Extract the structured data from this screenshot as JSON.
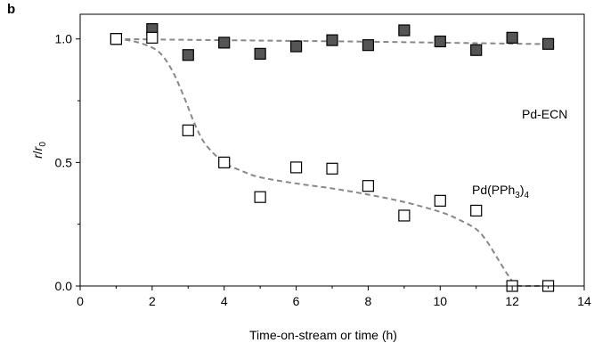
{
  "panel_label": "b",
  "chart_data": {
    "type": "scatter",
    "title": "",
    "xlabel": "Time-on-stream or time (h)",
    "ylabel_main": "r",
    "ylabel_sep": "/",
    "ylabel_sub_main": "r",
    "ylabel_subscript": "0",
    "xlim": [
      0,
      14
    ],
    "ylim": [
      0,
      1.1
    ],
    "xticks": [
      0,
      2,
      4,
      6,
      8,
      10,
      12,
      14
    ],
    "yticks": [
      0.0,
      0.5,
      1.0
    ],
    "ytick_labels": [
      "0.0",
      "0.5",
      "1.0"
    ],
    "grid": false,
    "series": [
      {
        "name": "Pd-ECN",
        "marker": "filled-square",
        "color": "#555555",
        "x": [
          1,
          2,
          3,
          4,
          5,
          6,
          7,
          8,
          9,
          10,
          11,
          12,
          13
        ],
        "y": [
          1.0,
          1.04,
          0.935,
          0.985,
          0.94,
          0.97,
          0.995,
          0.975,
          1.035,
          0.99,
          0.955,
          1.005,
          0.98
        ],
        "trend_x": [
          1,
          2,
          4,
          6,
          8,
          10,
          12,
          13
        ],
        "trend_y": [
          1.0,
          0.998,
          0.995,
          0.992,
          0.989,
          0.985,
          0.981,
          0.979
        ]
      },
      {
        "name": "Pd(PPh3)4",
        "label_main": "Pd(PPh",
        "label_sub": "3",
        "label_end": ")",
        "label_sub2": "4",
        "marker": "open-square",
        "color": "#ffffff",
        "x": [
          1,
          2,
          3,
          4,
          5,
          6,
          7,
          8,
          9,
          10,
          11,
          12,
          13
        ],
        "y": [
          1.0,
          1.005,
          0.63,
          0.5,
          0.36,
          0.48,
          0.475,
          0.405,
          0.285,
          0.345,
          0.305,
          0.0,
          0.0
        ],
        "trend_x": [
          1,
          1.5,
          2,
          2.3,
          2.6,
          2.9,
          3.2,
          3.5,
          4,
          4.5,
          5,
          6,
          7,
          8,
          9,
          10,
          10.5,
          11,
          11.3,
          11.6,
          11.9,
          12.1,
          12.3,
          12.6,
          13
        ],
        "trend_y": [
          1.0,
          0.99,
          0.965,
          0.93,
          0.86,
          0.76,
          0.65,
          0.57,
          0.5,
          0.465,
          0.44,
          0.415,
          0.395,
          0.37,
          0.34,
          0.3,
          0.27,
          0.23,
          0.18,
          0.11,
          0.04,
          0.005,
          0.0,
          0.0,
          0.0
        ]
      }
    ],
    "trend_color": "#888888"
  }
}
